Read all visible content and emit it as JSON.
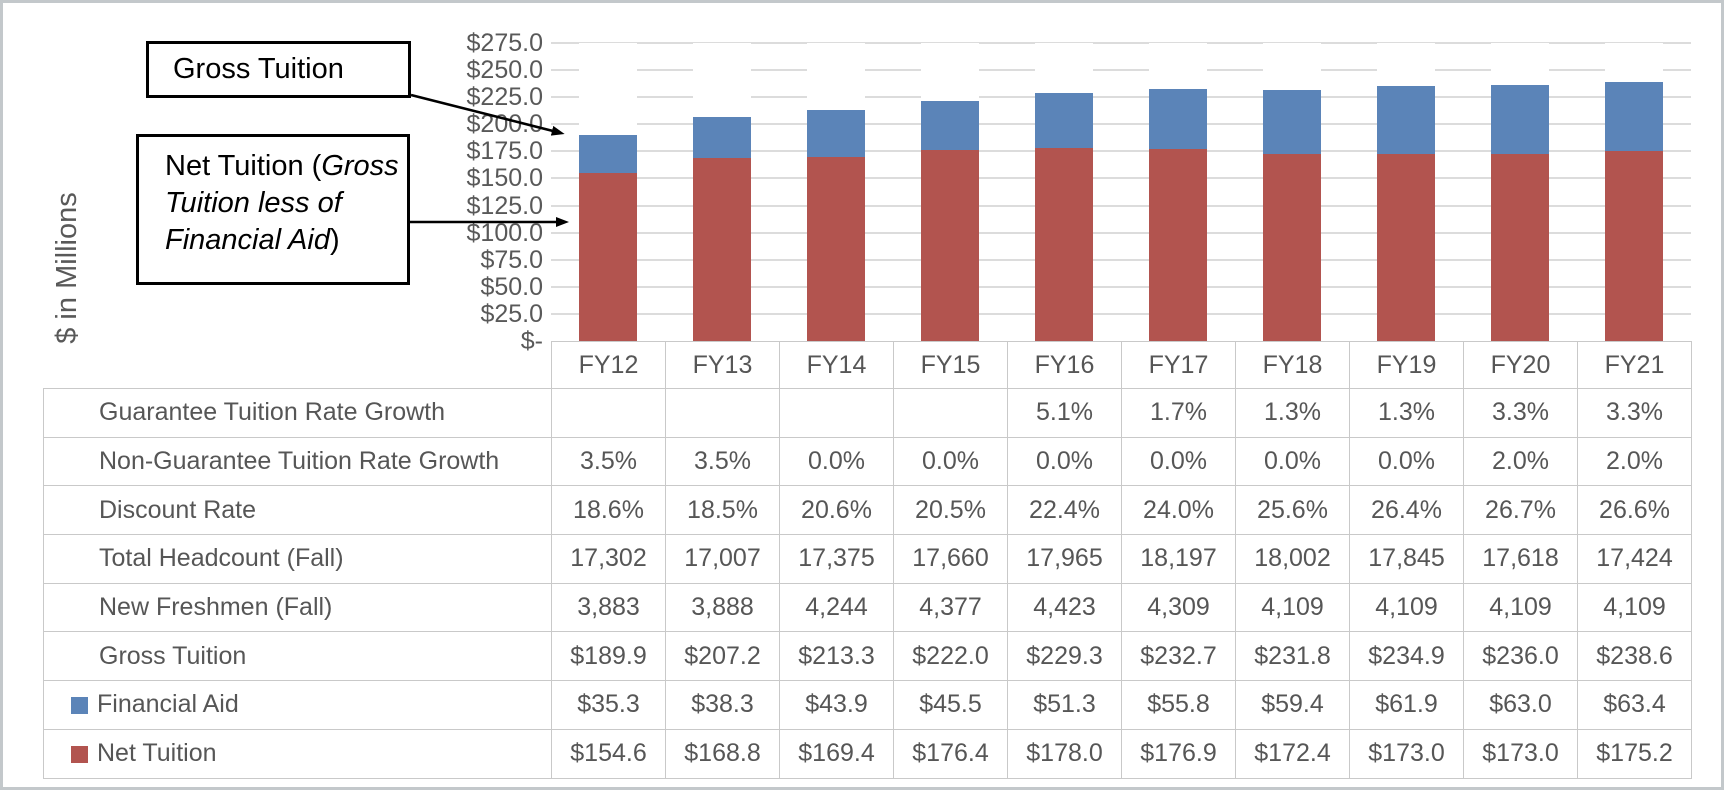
{
  "chart_data": {
    "type": "bar",
    "stacked": true,
    "categories": [
      "FY12",
      "FY13",
      "FY14",
      "FY15",
      "FY16",
      "FY17",
      "FY18",
      "FY19",
      "FY20",
      "FY21"
    ],
    "series": [
      {
        "name": "Net Tuition",
        "color": "#b2544f",
        "values": [
          154.6,
          168.8,
          169.4,
          176.4,
          178.0,
          176.9,
          172.4,
          173.0,
          173.0,
          175.2
        ]
      },
      {
        "name": "Financial Aid",
        "color": "#5b84b8",
        "values": [
          35.3,
          38.3,
          43.9,
          45.5,
          51.3,
          55.8,
          59.4,
          61.9,
          63.0,
          63.4
        ]
      }
    ],
    "gross_tuition_totals": [
      189.9,
      207.2,
      213.3,
      222.0,
      229.3,
      232.7,
      231.8,
      234.9,
      236.0,
      238.6
    ],
    "title": "",
    "xlabel": "",
    "ylabel": "$ in Millions",
    "ylim": [
      0,
      275
    ],
    "ytick_values": [
      275,
      250,
      225,
      200,
      175,
      150,
      125,
      100,
      75,
      50,
      25,
      0
    ],
    "ytick_labels": [
      "$275.0",
      "$250.0",
      "$225.0",
      "$200.0",
      "$175.0",
      "$150.0",
      "$125.0",
      "$100.0",
      "$75.0",
      "$50.0",
      "$25.0",
      "$-"
    ],
    "grid": "horizontal",
    "legend_position": "in-table-rows"
  },
  "annotations": {
    "gross": {
      "text": "Gross Tuition"
    },
    "net": {
      "prefix": "Net Tuition (",
      "italic": "Gross Tuition less of Financial Aid",
      "suffix": ")"
    }
  },
  "table": {
    "header": [
      "FY12",
      "FY13",
      "FY14",
      "FY15",
      "FY16",
      "FY17",
      "FY18",
      "FY19",
      "FY20",
      "FY21"
    ],
    "rows": [
      {
        "label": "Guarantee Tuition Rate Growth",
        "values": [
          "",
          "",
          "",
          "",
          "5.1%",
          "1.7%",
          "1.3%",
          "1.3%",
          "3.3%",
          "3.3%"
        ]
      },
      {
        "label": "Non-Guarantee Tuition Rate Growth",
        "values": [
          "3.5%",
          "3.5%",
          "0.0%",
          "0.0%",
          "0.0%",
          "0.0%",
          "0.0%",
          "0.0%",
          "2.0%",
          "2.0%"
        ]
      },
      {
        "label": "Discount Rate",
        "values": [
          "18.6%",
          "18.5%",
          "20.6%",
          "20.5%",
          "22.4%",
          "24.0%",
          "25.6%",
          "26.4%",
          "26.7%",
          "26.6%"
        ]
      },
      {
        "label": "Total Headcount (Fall)",
        "values": [
          "17,302",
          "17,007",
          "17,375",
          "17,660",
          "17,965",
          "18,197",
          "18,002",
          "17,845",
          "17,618",
          "17,424"
        ]
      },
      {
        "label": "New Freshmen (Fall)",
        "values": [
          "3,883",
          "3,888",
          "4,244",
          "4,377",
          "4,423",
          "4,309",
          "4,109",
          "4,109",
          "4,109",
          "4,109"
        ]
      },
      {
        "label": "Gross Tuition",
        "values": [
          "$189.9",
          "$207.2",
          "$213.3",
          "$222.0",
          "$229.3",
          "$232.7",
          "$231.8",
          "$234.9",
          "$236.0",
          "$238.6"
        ]
      },
      {
        "label": "Financial Aid",
        "legend_color": "#5b84b8",
        "values": [
          "$35.3",
          "$38.3",
          "$43.9",
          "$45.5",
          "$51.3",
          "$55.8",
          "$59.4",
          "$61.9",
          "$63.0",
          "$63.4"
        ]
      },
      {
        "label": "Net Tuition",
        "legend_color": "#b2544f",
        "values": [
          "$154.6",
          "$168.8",
          "$169.4",
          "$176.4",
          "$178.0",
          "$176.9",
          "$172.4",
          "$173.0",
          "$173.0",
          "$175.2"
        ]
      }
    ]
  },
  "colors": {
    "net_tuition": "#b2544f",
    "financial_aid": "#5b84b8",
    "grid": "#dcdcdc",
    "text": "#595959",
    "table_border": "#c9c9c9",
    "frame_border": "#c3c8cb",
    "callout_border": "#000000"
  }
}
